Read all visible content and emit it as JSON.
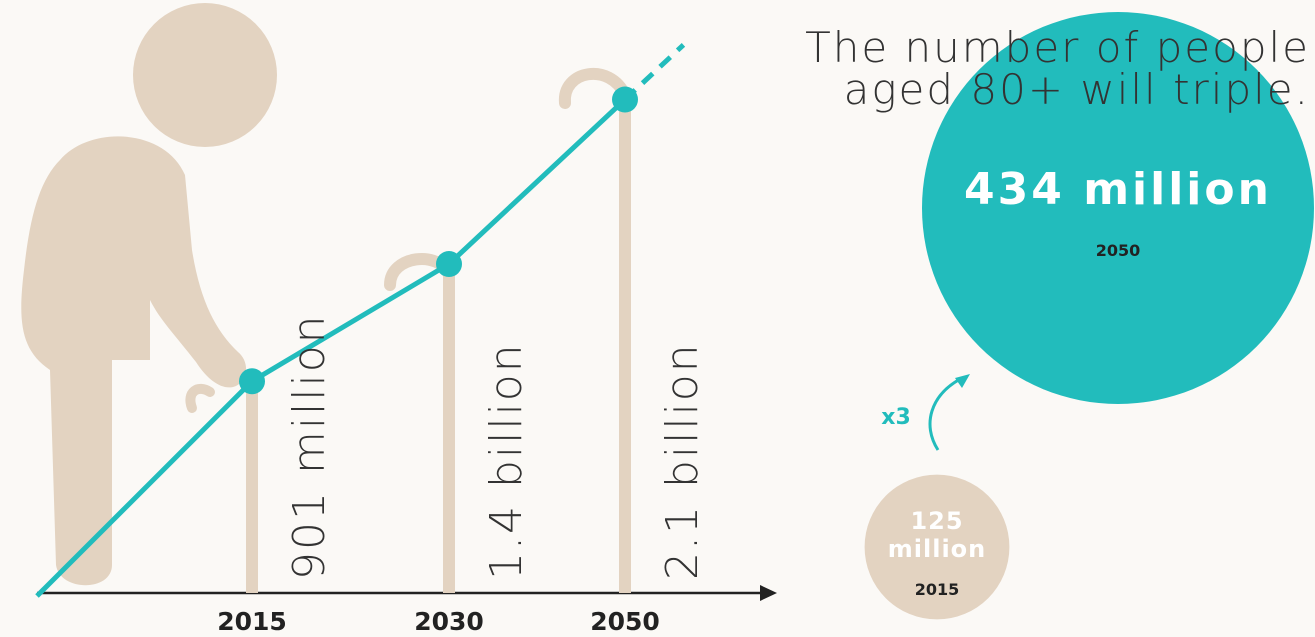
{
  "chart_data": [
    {
      "type": "line",
      "categories": [
        "2015",
        "2030",
        "2050"
      ],
      "values": [
        901000000,
        1400000000,
        2100000000
      ],
      "value_labels": [
        "901 million",
        "1.4 billion",
        "2.1 billion"
      ],
      "color": "#22bcbc"
    },
    {
      "type": "bubble",
      "title": [
        "The number of people",
        "aged 80+ will triple."
      ],
      "annotation": "x3",
      "categories": [
        "2015",
        "2050"
      ],
      "values": [
        125000000,
        434000000
      ],
      "value_labels": [
        "125 million",
        "434 million"
      ],
      "colors": [
        "#e3d3c1",
        "#22bcbc"
      ]
    }
  ]
}
